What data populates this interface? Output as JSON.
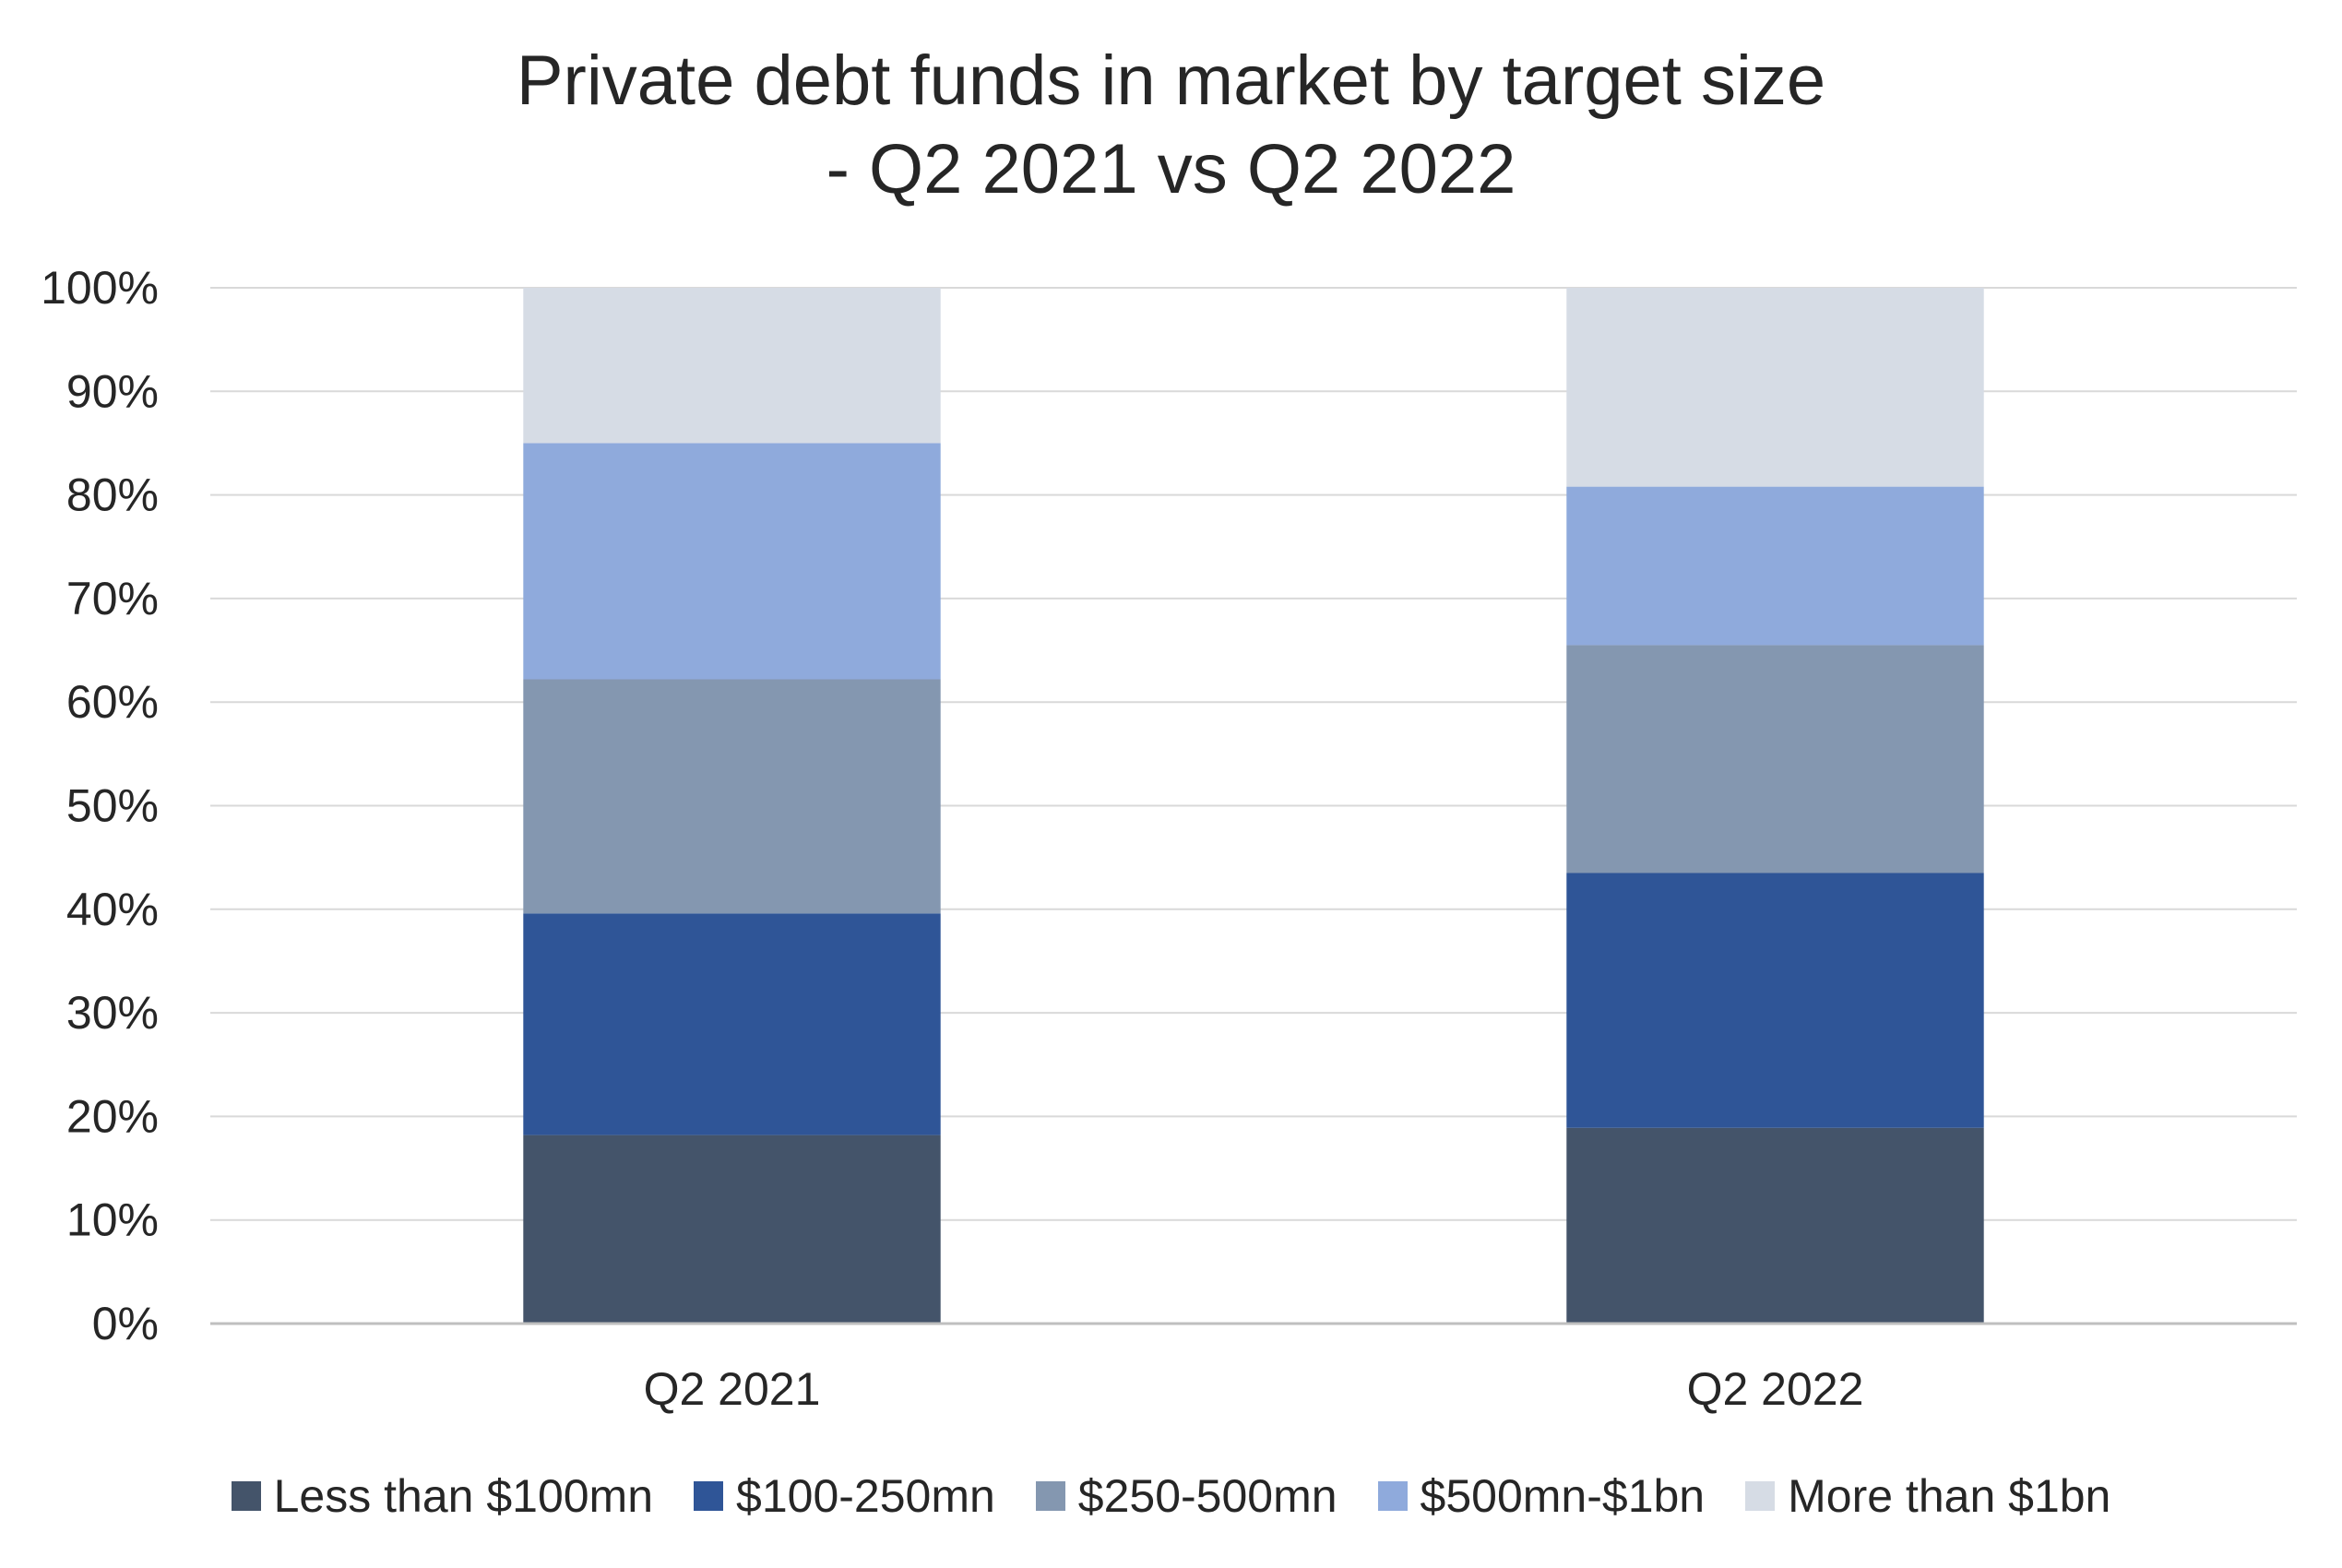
{
  "chart_data": {
    "type": "bar",
    "stacked": true,
    "percent": true,
    "title_lines": [
      "Private debt funds in market by target size",
      "- Q2 2021 vs Q2 2022"
    ],
    "categories": [
      "Q2 2021",
      "Q2 2022"
    ],
    "series": [
      {
        "name": "Less than $100mn",
        "color": "#44546A",
        "values": [
          18.2,
          18.9
        ]
      },
      {
        "name": "$100-250mn",
        "color": "#2F5597",
        "values": [
          21.4,
          24.6
        ]
      },
      {
        "name": "$250-500mn",
        "color": "#8497B0",
        "values": [
          22.6,
          22.0
        ]
      },
      {
        "name": "$500mn-$1bn",
        "color": "#8FAADC",
        "values": [
          22.8,
          15.3
        ]
      },
      {
        "name": "More than $1bn",
        "color": "#D6DCE5",
        "values": [
          15.0,
          19.2
        ]
      }
    ],
    "ylim": [
      0,
      100
    ],
    "yticks": [
      "0%",
      "10%",
      "20%",
      "30%",
      "40%",
      "50%",
      "60%",
      "70%",
      "80%",
      "90%",
      "100%"
    ],
    "grid": true,
    "legend_position": "bottom"
  }
}
